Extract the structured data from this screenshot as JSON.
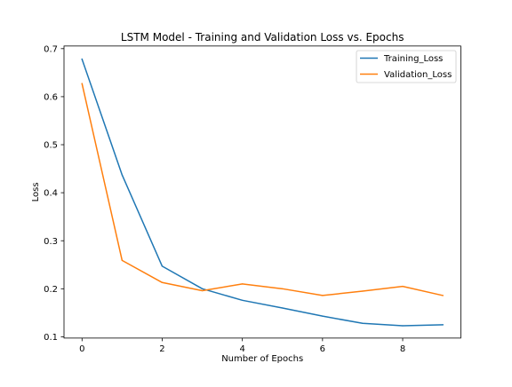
{
  "chart_data": {
    "type": "line",
    "title": "LSTM Model - Training and Validation Loss vs. Epochs",
    "xlabel": "Number of Epochs",
    "ylabel": "Loss",
    "xlim": [
      -0.45,
      9.45
    ],
    "ylim": [
      0.0973,
      0.7055
    ],
    "xticks": [
      0,
      2,
      4,
      6,
      8
    ],
    "yticks": [
      0.1,
      0.2,
      0.3,
      0.4,
      0.5,
      0.6,
      0.7
    ],
    "grid": false,
    "legend_position": "top-right",
    "x": [
      0,
      1,
      2,
      3,
      4,
      5,
      6,
      7,
      8,
      9
    ],
    "series": [
      {
        "name": "Training_Loss",
        "color": "#1f77b4",
        "values": [
          0.678,
          0.437,
          0.247,
          0.2,
          0.176,
          0.16,
          0.143,
          0.128,
          0.123,
          0.125
        ]
      },
      {
        "name": "Validation_Loss",
        "color": "#ff7f0e",
        "values": [
          0.627,
          0.259,
          0.213,
          0.196,
          0.21,
          0.2,
          0.186,
          0.195,
          0.205,
          0.186
        ]
      }
    ]
  }
}
